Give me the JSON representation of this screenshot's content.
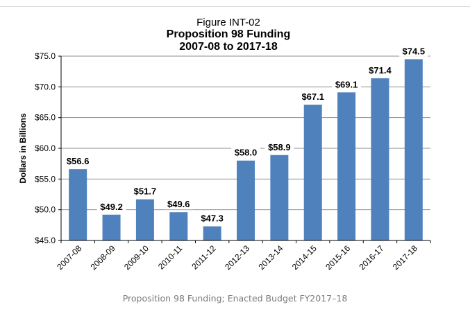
{
  "chart_data": {
    "type": "bar",
    "figure_label": "Figure INT-02",
    "title": "Proposition 98 Funding",
    "subtitle": "2007-08 to 2017-18",
    "ylabel": "Dollars in Billions",
    "xlabel": "",
    "ylim": [
      45.0,
      75.0
    ],
    "yticks": [
      45.0,
      50.0,
      55.0,
      60.0,
      65.0,
      70.0,
      75.0
    ],
    "ytick_labels": [
      "$45.0",
      "$50.0",
      "$55.0",
      "$60.0",
      "$65.0",
      "$70.0",
      "$75.0"
    ],
    "categories": [
      "2007-08",
      "2008-09",
      "2009-10",
      "2010-11",
      "2011-12",
      "2012-13",
      "2013-14",
      "2014-15",
      "2015-16",
      "2016-17",
      "2017-18"
    ],
    "values": [
      56.6,
      49.2,
      51.7,
      49.6,
      47.3,
      58.0,
      58.9,
      67.1,
      69.1,
      71.4,
      74.5
    ],
    "data_labels": [
      "$56.6",
      "$49.2",
      "$51.7",
      "$49.6",
      "$47.3",
      "$58.0",
      "$58.9",
      "$67.1",
      "$69.1",
      "$71.4",
      "$74.5"
    ],
    "grid": true,
    "bar_color": "#4f81bd"
  },
  "caption": "Proposition 98 Funding; Enacted Budget FY2017–18"
}
